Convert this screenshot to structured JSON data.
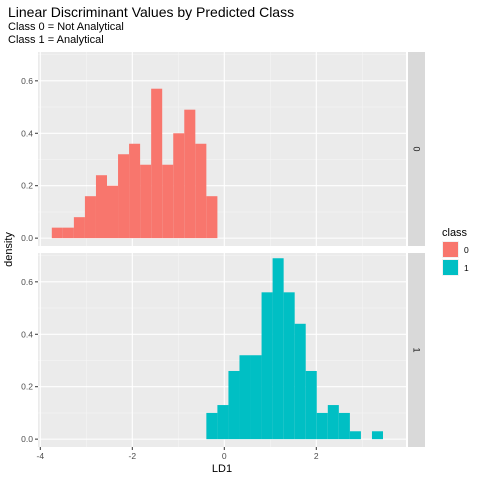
{
  "chart_data": {
    "type": "histogram",
    "title": "Linear Discriminant Values by Predicted Class",
    "subtitle_lines": [
      "Class 0 = Not Analytical",
      "Class 1 = Analytical"
    ],
    "xlabel": "LD1",
    "ylabel": "density",
    "x_ticks": [
      -4,
      -2,
      0,
      2
    ],
    "x_tick_labels": [
      "-4",
      "-2",
      "0",
      "2"
    ],
    "xlim": [
      -4.05,
      3.95
    ],
    "y_ticks": [
      0.0,
      0.2,
      0.4,
      0.6
    ],
    "y_tick_labels": [
      "0.0",
      "0.2",
      "0.4",
      "0.6"
    ],
    "ylim": [
      -0.03,
      0.71
    ],
    "grid": true,
    "legend": {
      "title": "class",
      "position": "right",
      "entries": [
        "0",
        "1"
      ]
    },
    "facet_strip_position": "right",
    "colors": {
      "0": "#F8766D",
      "1": "#00BFC4",
      "panel_bg": "#EBEBEB",
      "strip_bg": "#D9D9D9"
    },
    "bin_width": 0.24,
    "series": [
      {
        "name": "0",
        "bin_starts": [
          -3.75,
          -3.51,
          -3.27,
          -3.03,
          -2.79,
          -2.55,
          -2.31,
          -2.07,
          -1.83,
          -1.59,
          -1.35,
          -1.11,
          -0.87,
          -0.63,
          -0.39
        ],
        "values": [
          0.04,
          0.04,
          0.08,
          0.16,
          0.24,
          0.2,
          0.32,
          0.36,
          0.28,
          0.57,
          0.28,
          0.4,
          0.49,
          0.36,
          0.16
        ]
      },
      {
        "name": "1",
        "bin_starts": [
          -0.39,
          -0.15,
          0.09,
          0.33,
          0.57,
          0.81,
          1.05,
          1.29,
          1.53,
          1.77,
          2.01,
          2.25,
          2.49,
          2.73,
          2.97,
          3.21
        ],
        "values": [
          0.1,
          0.13,
          0.26,
          0.32,
          0.32,
          0.56,
          0.69,
          0.56,
          0.44,
          0.26,
          0.1,
          0.13,
          0.1,
          0.03,
          0.0,
          0.03
        ]
      }
    ]
  }
}
